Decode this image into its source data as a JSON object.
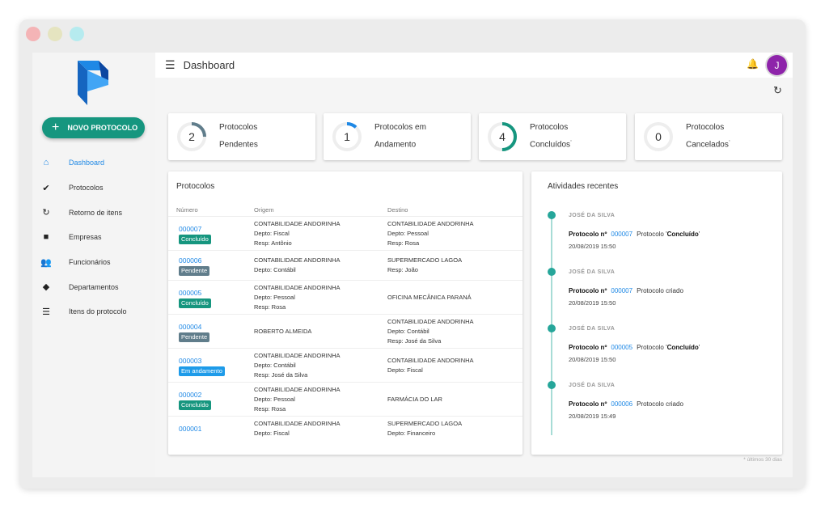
{
  "window_controls": {
    "colors": [
      "#f4b4b6",
      "#e5e4c0",
      "#b6ebef"
    ]
  },
  "sidebar": {
    "new_button": "NOVO PROTOCOLO",
    "items": [
      {
        "label": "Dashboard",
        "icon": "home-icon",
        "glyph": "⌂",
        "active": true
      },
      {
        "label": "Protocolos",
        "icon": "clipboard-check-icon",
        "glyph": "✔"
      },
      {
        "label": "Retorno de itens",
        "icon": "restore-icon",
        "glyph": "↻"
      },
      {
        "label": "Empresas",
        "icon": "briefcase-icon",
        "glyph": "■"
      },
      {
        "label": "Funcionários",
        "icon": "people-icon",
        "glyph": "👥"
      },
      {
        "label": "Departamentos",
        "icon": "layers-icon",
        "glyph": "◆"
      },
      {
        "label": "Itens do protocolo",
        "icon": "list-icon",
        "glyph": "☰"
      }
    ]
  },
  "header": {
    "title": "Dashboard",
    "avatar": "J"
  },
  "stats": [
    {
      "value": "2",
      "line1": "Protocolos",
      "line2": "Pendentes",
      "note": "",
      "fill": 0.25,
      "color": "#607d8b"
    },
    {
      "value": "1",
      "line1": "Protocolos em",
      "line2": "Andamento",
      "note": "",
      "fill": 0.12,
      "color": "#1e88e5"
    },
    {
      "value": "4",
      "line1": "Protocolos",
      "line2": "Concluídos",
      "note": "*",
      "fill": 0.5,
      "color": "#16967f"
    },
    {
      "value": "0",
      "line1": "Protocolos",
      "line2": "Cancelados",
      "note": "*",
      "fill": 0,
      "color": "#999999"
    }
  ],
  "protocols": {
    "title": "Protocolos",
    "headers": [
      "Número",
      "Origem",
      "Destino"
    ],
    "status_colors": {
      "Concluído": "#16967f",
      "Pendente": "#607d8b",
      "Em andamento": "#1e9be9"
    },
    "rows": [
      {
        "num": "000007",
        "status": "Concluído",
        "origem": [
          "CONTABILIDADE ANDORINHA",
          "Depto: Fiscal",
          "Resp: Antônio"
        ],
        "destino": [
          "CONTABILIDADE ANDORINHA",
          "Depto: Pessoal",
          "Resp: Rosa"
        ]
      },
      {
        "num": "000006",
        "status": "Pendente",
        "origem": [
          "CONTABILIDADE ANDORINHA",
          "Depto: Contábil"
        ],
        "destino": [
          "SUPERMERCADO LAGOA",
          "Resp: João"
        ]
      },
      {
        "num": "000005",
        "status": "Concluído",
        "origem": [
          "CONTABILIDADE ANDORINHA",
          "Depto: Pessoal",
          "Resp: Rosa"
        ],
        "destino": [
          "OFICINA MECÂNICA PARANÁ"
        ]
      },
      {
        "num": "000004",
        "status": "Pendente",
        "origem": [
          "ROBERTO ALMEIDA"
        ],
        "destino": [
          "CONTABILIDADE ANDORINHA",
          "Depto: Contábil",
          "Resp: José da Silva"
        ]
      },
      {
        "num": "000003",
        "status": "Em andamento",
        "origem": [
          "CONTABILIDADE ANDORINHA",
          "Depto: Contábil",
          "Resp: José da Silva"
        ],
        "destino": [
          "CONTABILIDADE ANDORINHA",
          "Depto: Fiscal"
        ]
      },
      {
        "num": "000002",
        "status": "Concluído",
        "origem": [
          "CONTABILIDADE ANDORINHA",
          "Depto: Pessoal",
          "Resp: Rosa"
        ],
        "destino": [
          "FARMÁCIA DO LAR"
        ]
      },
      {
        "num": "000001",
        "status": "",
        "origem": [
          "CONTABILIDADE ANDORINHA",
          "Depto: Fiscal"
        ],
        "destino": [
          "SUPERMERCADO LAGOA",
          "Depto: Financeiro"
        ]
      }
    ]
  },
  "activities": {
    "title": "Atividades recentes",
    "label": "Protocolo nº",
    "items": [
      {
        "user": "JOSÉ DA SILVA",
        "num": "000007",
        "pre": "Protocolo '",
        "bold": "Concluído",
        "post": "'",
        "date": "20/08/2019 15:50"
      },
      {
        "user": "JOSÉ DA SILVA",
        "num": "000007",
        "pre": "Protocolo criado",
        "bold": "",
        "post": "",
        "date": "20/08/2019 15:50"
      },
      {
        "user": "JOSÉ DA SILVA",
        "num": "000005",
        "pre": "Protocolo '",
        "bold": "Concluído",
        "post": "'",
        "date": "20/08/2019 15:50"
      },
      {
        "user": "JOSÉ DA SILVA",
        "num": "000006",
        "pre": "Protocolo criado",
        "bold": "",
        "post": "",
        "date": "20/08/2019 15:49"
      }
    ]
  },
  "footnote": "* últimos 30 dias"
}
